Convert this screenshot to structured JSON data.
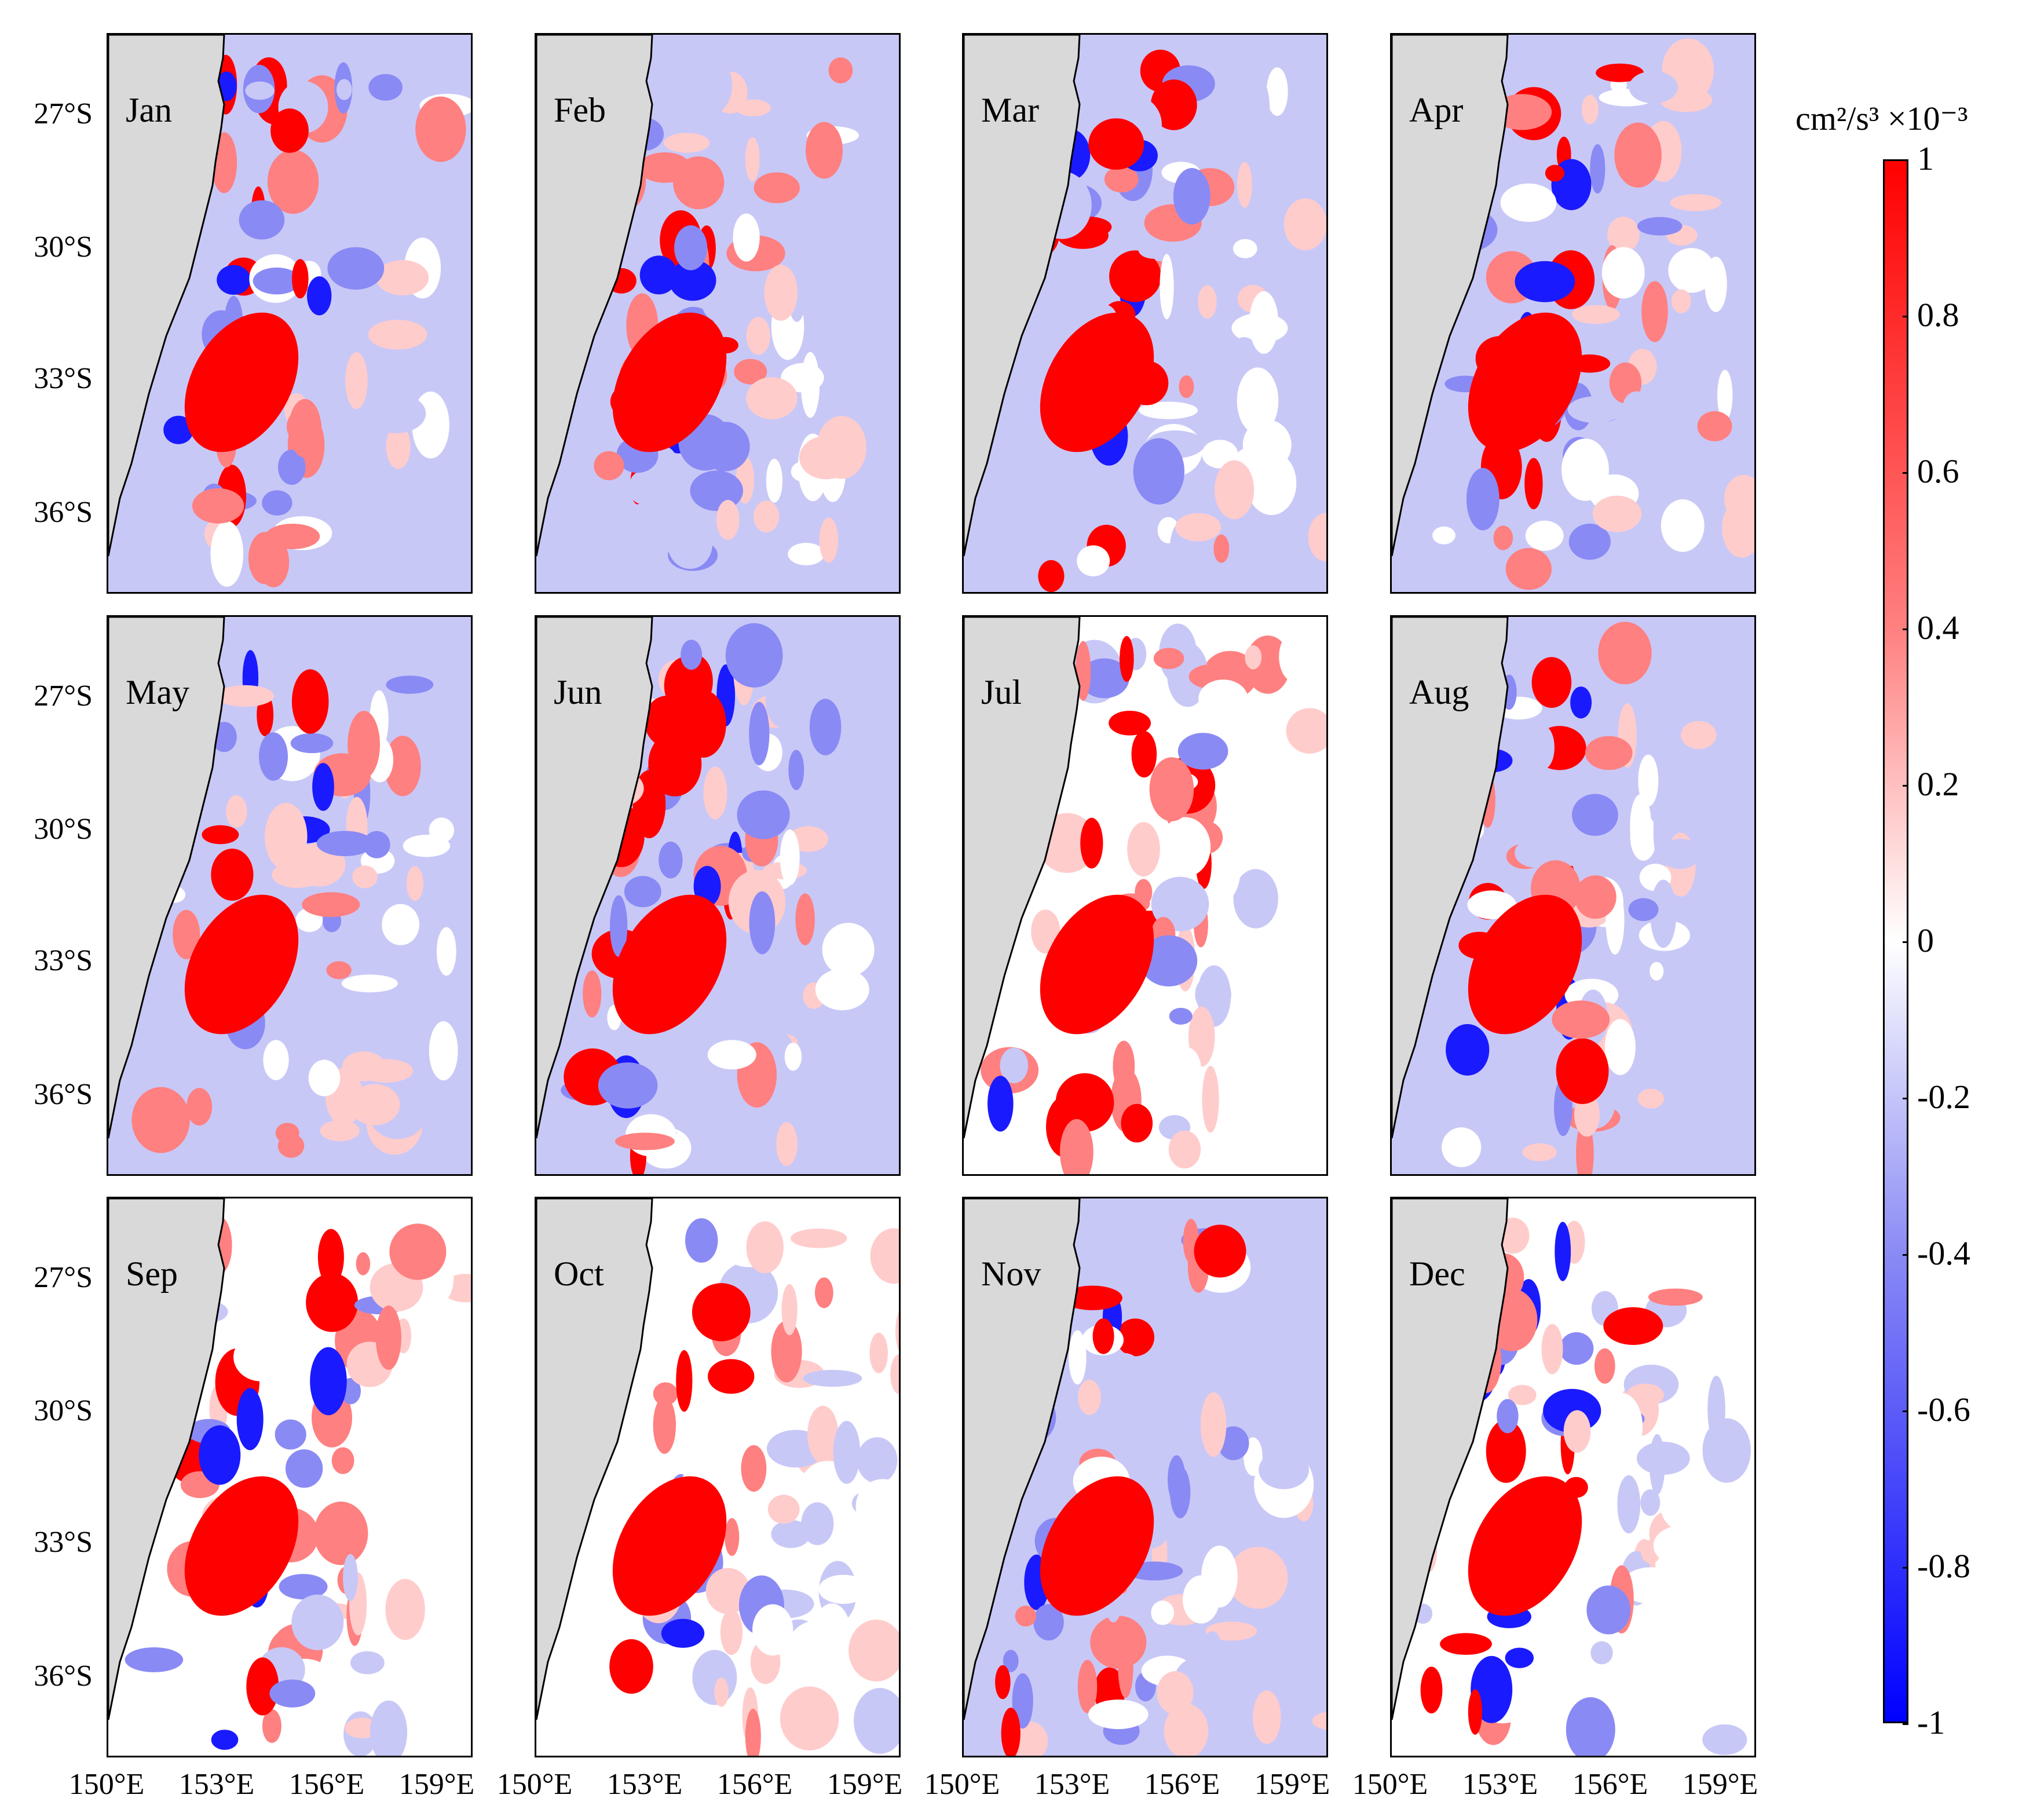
{
  "figure": {
    "panels": [
      {
        "month": "Jan"
      },
      {
        "month": "Feb"
      },
      {
        "month": "Mar"
      },
      {
        "month": "Apr"
      },
      {
        "month": "May"
      },
      {
        "month": "Jun"
      },
      {
        "month": "Jul"
      },
      {
        "month": "Aug"
      },
      {
        "month": "Sep"
      },
      {
        "month": "Oct"
      },
      {
        "month": "Nov"
      },
      {
        "month": "Dec"
      }
    ],
    "lat_ticks": [
      "27°S",
      "30°S",
      "33°S",
      "36°S"
    ],
    "lon_ticks": [
      "150°E",
      "153°E",
      "156°E",
      "159°E"
    ],
    "colorbar": {
      "title_unit": "cm²/s³ ×10⁻³",
      "ticks": [
        "1",
        "0.8",
        "0.6",
        "0.4",
        "0.2",
        "0",
        "-0.2",
        "-0.4",
        "-0.6",
        "-0.8",
        "-1"
      ],
      "min": -1,
      "max": 1
    },
    "colors": {
      "land": "#d9d9d9",
      "positive_strong": "#ff0000",
      "positive_mid": "#ff8080",
      "positive_weak": "#ffcccc",
      "neutral": "#ffffff",
      "negative_weak": "#c8c8f7",
      "negative_mid": "#8a8af5",
      "negative_strong": "#1a1aff"
    },
    "background_level": [
      -0.3,
      -0.2,
      -0.25,
      -0.25,
      -0.25,
      -0.2,
      -0.1,
      -0.15,
      0,
      -0.05,
      -0.25,
      0
    ]
  }
}
